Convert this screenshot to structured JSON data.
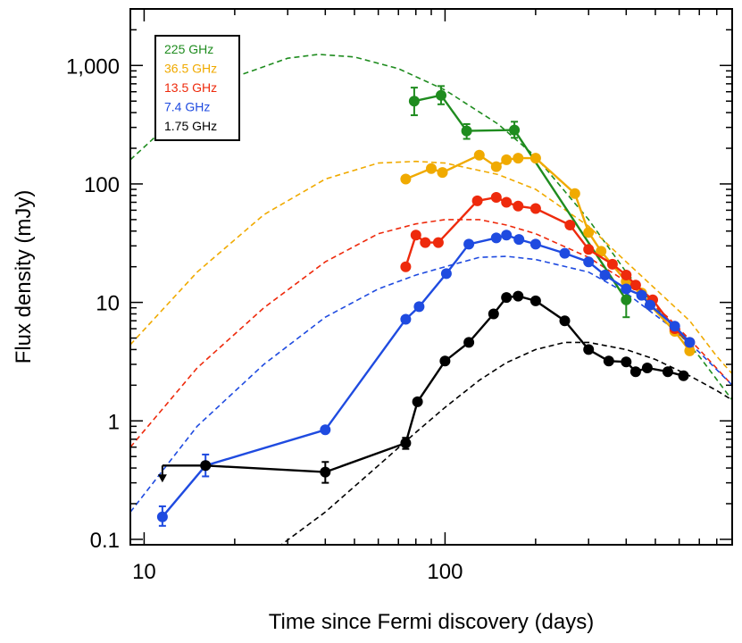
{
  "chart_data": {
    "type": "line",
    "xlabel": "Time since Fermi discovery (days)",
    "ylabel": "Flux density (mJy)",
    "xscale": "log",
    "yscale": "log",
    "xlim": [
      9,
      900
    ],
    "ylim": [
      0.09,
      3000
    ],
    "x_tick_labels": [
      "10",
      "100"
    ],
    "y_tick_labels": [
      "0.1",
      "1",
      "10",
      "100",
      "1,000"
    ],
    "legend_position": "top-left",
    "series": [
      {
        "name": "225 GHz",
        "color": "#1f8c1f",
        "points": [
          [
            79,
            500
          ],
          [
            97,
            560
          ],
          [
            118,
            280
          ],
          [
            170,
            285
          ],
          [
            400,
            10.5
          ]
        ],
        "errors": [
          [
            79,
            380,
            650
          ],
          [
            97,
            470,
            670
          ],
          [
            118,
            240,
            320
          ],
          [
            170,
            245,
            335
          ],
          [
            400,
            7.5,
            14
          ]
        ],
        "model": [
          [
            9,
            160
          ],
          [
            14,
            450
          ],
          [
            20,
            800
          ],
          [
            30,
            1150
          ],
          [
            38,
            1240
          ],
          [
            50,
            1180
          ],
          [
            70,
            940
          ],
          [
            100,
            620
          ],
          [
            150,
            320
          ],
          [
            200,
            170
          ],
          [
            300,
            50
          ],
          [
            400,
            18
          ],
          [
            550,
            7
          ],
          [
            700,
            3.5
          ],
          [
            900,
            1.5
          ]
        ]
      },
      {
        "name": "36.5 GHz",
        "color": "#f0aa00",
        "points": [
          [
            74,
            110
          ],
          [
            90,
            135
          ],
          [
            98,
            125
          ],
          [
            130,
            175
          ],
          [
            148,
            140
          ],
          [
            160,
            160
          ],
          [
            175,
            165
          ],
          [
            200,
            165
          ],
          [
            270,
            83
          ],
          [
            300,
            39
          ],
          [
            330,
            27
          ],
          [
            400,
            15
          ],
          [
            450,
            12
          ],
          [
            480,
            9.5
          ],
          [
            580,
            5.7
          ],
          [
            650,
            3.9
          ]
        ],
        "model": [
          [
            9,
            4.4
          ],
          [
            15,
            18
          ],
          [
            25,
            55
          ],
          [
            40,
            110
          ],
          [
            60,
            150
          ],
          [
            80,
            155
          ],
          [
            100,
            150
          ],
          [
            150,
            120
          ],
          [
            200,
            90
          ],
          [
            300,
            44
          ],
          [
            400,
            22
          ],
          [
            500,
            13
          ],
          [
            650,
            7
          ],
          [
            800,
            3.5
          ],
          [
            900,
            2.5
          ]
        ]
      },
      {
        "name": "13.5 GHz",
        "color": "#ee2a0c",
        "points": [
          [
            74,
            20
          ],
          [
            80,
            37
          ],
          [
            86,
            32
          ],
          [
            95,
            32
          ],
          [
            128,
            72
          ],
          [
            148,
            77
          ],
          [
            160,
            70
          ],
          [
            175,
            65
          ],
          [
            200,
            62
          ],
          [
            260,
            45
          ],
          [
            300,
            28
          ],
          [
            360,
            21
          ],
          [
            400,
            17
          ],
          [
            430,
            14
          ],
          [
            490,
            10.5
          ],
          [
            580,
            6
          ],
          [
            650,
            4.6
          ]
        ],
        "model": [
          [
            9,
            0.6
          ],
          [
            15,
            2.8
          ],
          [
            25,
            9
          ],
          [
            40,
            22
          ],
          [
            60,
            38
          ],
          [
            80,
            46
          ],
          [
            100,
            50
          ],
          [
            130,
            50
          ],
          [
            160,
            45
          ],
          [
            200,
            38
          ],
          [
            300,
            24
          ],
          [
            400,
            15
          ],
          [
            550,
            7.5
          ],
          [
            700,
            4
          ],
          [
            900,
            2
          ]
        ]
      },
      {
        "name": "7.4 GHz",
        "color": "#1f4be0",
        "points": [
          [
            11.5,
            0.155
          ],
          [
            16,
            0.42
          ],
          [
            40,
            0.84
          ],
          [
            74,
            7.2
          ],
          [
            82,
            9.2
          ],
          [
            101,
            17.5
          ],
          [
            120,
            31
          ],
          [
            148,
            35
          ],
          [
            160,
            37
          ],
          [
            176,
            34
          ],
          [
            200,
            31
          ],
          [
            250,
            26
          ],
          [
            300,
            22
          ],
          [
            340,
            17
          ],
          [
            400,
            13
          ],
          [
            450,
            11.5
          ],
          [
            480,
            9.5
          ],
          [
            580,
            6.3
          ],
          [
            650,
            4.6
          ]
        ],
        "errors": [
          [
            11.5,
            0.13,
            0.19
          ],
          [
            16,
            0.34,
            0.52
          ]
        ],
        "model": [
          [
            9,
            0.17
          ],
          [
            15,
            0.9
          ],
          [
            25,
            3
          ],
          [
            40,
            7.5
          ],
          [
            60,
            13
          ],
          [
            80,
            17
          ],
          [
            100,
            20
          ],
          [
            130,
            24
          ],
          [
            160,
            24.5
          ],
          [
            200,
            23
          ],
          [
            300,
            18
          ],
          [
            400,
            12
          ],
          [
            550,
            6.5
          ],
          [
            700,
            3.8
          ],
          [
            900,
            2
          ]
        ]
      },
      {
        "name": "1.75 GHz",
        "color": "#000000",
        "points": [
          [
            11.5,
            0.42
          ],
          [
            16,
            0.42
          ],
          [
            40,
            0.37
          ],
          [
            74,
            0.65
          ],
          [
            81,
            1.45
          ],
          [
            100,
            3.2
          ],
          [
            120,
            4.6
          ],
          [
            145,
            8
          ],
          [
            160,
            11
          ],
          [
            175,
            11.3
          ],
          [
            200,
            10.3
          ],
          [
            250,
            7
          ],
          [
            300,
            4
          ],
          [
            350,
            3.2
          ],
          [
            400,
            3.15
          ],
          [
            430,
            2.6
          ],
          [
            470,
            2.8
          ],
          [
            550,
            2.6
          ],
          [
            620,
            2.4
          ]
        ],
        "errors": [
          [
            40,
            0.3,
            0.45
          ],
          [
            74,
            0.58,
            0.72
          ]
        ],
        "upper_limit": [
          11.5,
          0.42
        ],
        "model": [
          [
            25,
            0.07
          ],
          [
            40,
            0.17
          ],
          [
            60,
            0.42
          ],
          [
            80,
            0.8
          ],
          [
            100,
            1.3
          ],
          [
            130,
            2.2
          ],
          [
            160,
            3.1
          ],
          [
            200,
            4
          ],
          [
            250,
            4.6
          ],
          [
            300,
            4.6
          ],
          [
            400,
            4
          ],
          [
            500,
            3.3
          ],
          [
            650,
            2.4
          ],
          [
            800,
            1.8
          ],
          [
            900,
            1.5
          ]
        ]
      }
    ]
  }
}
